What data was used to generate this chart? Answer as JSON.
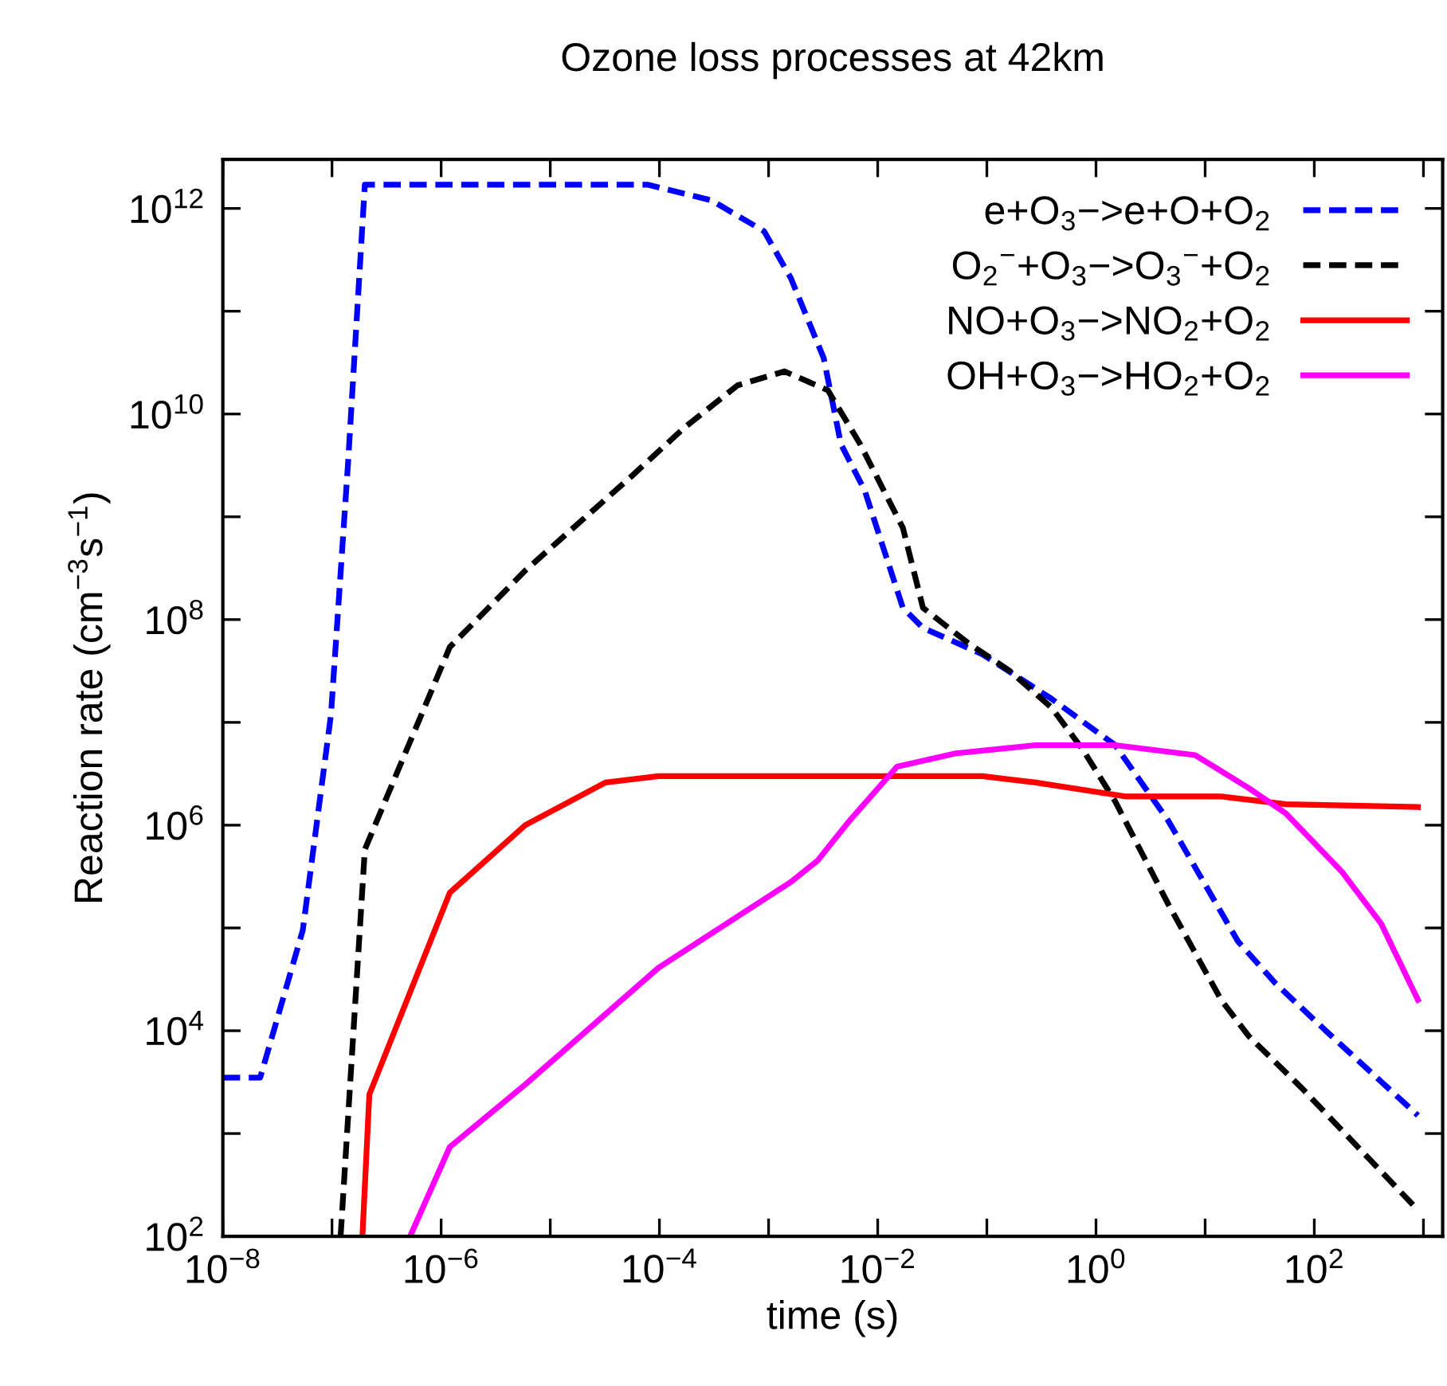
{
  "chart_data": {
    "type": "line",
    "title": "Ozone loss processes at 42km",
    "xlabel": "time (s)",
    "ylabel": "Reaction rate (cm$^{−3}$s$^{−1}$)",
    "log": "xy",
    "grid": false,
    "legend": "top right",
    "marker": "none",
    "xlim": [
      1e-08,
      1500
    ],
    "ylim": [
      100,
      3000000000000.0
    ],
    "xticks": [
      {
        "value": 1e-08,
        "label": "10$^{−8}$"
      },
      {
        "value": 1e-07,
        "label": null
      },
      {
        "value": 1e-06,
        "label": "10$^{−6}$"
      },
      {
        "value": 1e-05,
        "label": null
      },
      {
        "value": 0.0001,
        "label": "10$^{−4}$"
      },
      {
        "value": 0.001,
        "label": null
      },
      {
        "value": 0.01,
        "label": "10$^{−2}$"
      },
      {
        "value": 0.1,
        "label": null
      },
      {
        "value": 1,
        "label": "10$^{0}$"
      },
      {
        "value": 10,
        "label": null
      },
      {
        "value": 100,
        "label": "10$^{2}$"
      },
      {
        "value": 1000,
        "label": null
      }
    ],
    "yticks": [
      {
        "value": 100,
        "label": "10$^{2}$"
      },
      {
        "value": 1000.0,
        "label": null
      },
      {
        "value": 10000.0,
        "label": "10$^{4}$"
      },
      {
        "value": 100000.0,
        "label": null
      },
      {
        "value": 1000000.0,
        "label": "10$^{6}$"
      },
      {
        "value": 10000000.0,
        "label": null
      },
      {
        "value": 100000000.0,
        "label": "10$^{8}$"
      },
      {
        "value": 1000000000.0,
        "label": null
      },
      {
        "value": 10000000000.0,
        "label": "10$^{10}$"
      },
      {
        "value": 100000000000.0,
        "label": null
      },
      {
        "value": 1000000000000.0,
        "label": "10$^{12}$"
      }
    ],
    "series": [
      {
        "name": "e+O$_{3}$−>e+O+O$_{2}$",
        "color": "#0000ff",
        "line_style": "dashed",
        "x": [
          1e-08,
          2.2e-08,
          5.4e-08,
          9.8e-08,
          1.4e-07,
          2e-07,
          7.9e-05,
          0.0003,
          0.00091,
          0.0016,
          0.0032,
          0.0046,
          0.0076,
          0.017,
          0.026,
          0.091,
          0.39,
          1.5,
          4.6,
          20,
          44,
          130,
          890
        ],
        "values": [
          3500.0,
          3500.0,
          95000.0,
          12000000.0,
          3200000000.0,
          1700000000000.0,
          1700000000000.0,
          1200000000000.0,
          600000000000.0,
          210000000000.0,
          35000000000.0,
          5100000000.0,
          1800000000.0,
          130000000.0,
          83000000.0,
          46000000.0,
          17000000.0,
          6000000.0,
          1100000.0,
          74000.0,
          29000.0,
          9800.0,
          1500.0
        ]
      },
      {
        "name": "O$_{2}$$^{−}$+O$_{3}$−>O$_{3}$$^{−}$+O$_{2}$",
        "color": "#000000",
        "line_style": "dashed",
        "x": [
          1.2e-07,
          2e-07,
          1.2e-06,
          5.9e-06,
          5.6e-05,
          0.00017,
          0.00052,
          0.0014,
          0.0035,
          0.0069,
          0.017,
          0.026,
          0.066,
          0.16,
          0.39,
          0.76,
          1.5,
          4.6,
          14,
          25,
          76,
          890
        ],
        "values": [
          100,
          580000.0,
          54000000.0,
          300000000.0,
          2500000000.0,
          7400000000.0,
          19000000000.0,
          26000000000.0,
          17000000000.0,
          5100000000.0,
          780000000.0,
          130000000.0,
          60000000.0,
          32000000.0,
          14000000.0,
          5400000.0,
          1700000.0,
          170000.0,
          20000.0,
          8900.0,
          2800.0,
          180
        ]
      },
      {
        "name": "NO+O$_{3}$−>NO$_{2}$+O$_{2}$",
        "color": "#ff0000",
        "line_style": "solid",
        "x": [
          1.9e-07,
          2.2e-07,
          1.2e-06,
          5.9e-06,
          3.2e-05,
          9.8e-05,
          0.091,
          0.28,
          1.9,
          4.6,
          14,
          55,
          890
        ],
        "values": [
          100,
          2400.0,
          220000.0,
          1000000.0,
          2600000.0,
          3000000.0,
          3000000.0,
          2600000.0,
          1900000.0,
          1900000.0,
          1900000.0,
          1600000.0,
          1500000.0
        ]
      },
      {
        "name": "OH+O$_{3}$−>HO$_{2}$+O$_{2}$",
        "color": "#ff00ff",
        "line_style": "solid",
        "x": [
          5.2e-07,
          1.2e-06,
          5.9e-06,
          9.8e-05,
          0.00091,
          0.0016,
          0.0028,
          0.0055,
          0.015,
          0.052,
          0.28,
          1.5,
          8.1,
          25,
          55,
          180,
          410,
          890
        ],
        "values": [
          100,
          740,
          3000.0,
          41000.0,
          190000.0,
          280000.0,
          450000.0,
          1100000.0,
          3700000.0,
          5000000.0,
          6000000.0,
          6000000.0,
          4800000.0,
          2300000.0,
          1300000.0,
          350000.0,
          110000.0,
          20000.0
        ]
      }
    ]
  }
}
